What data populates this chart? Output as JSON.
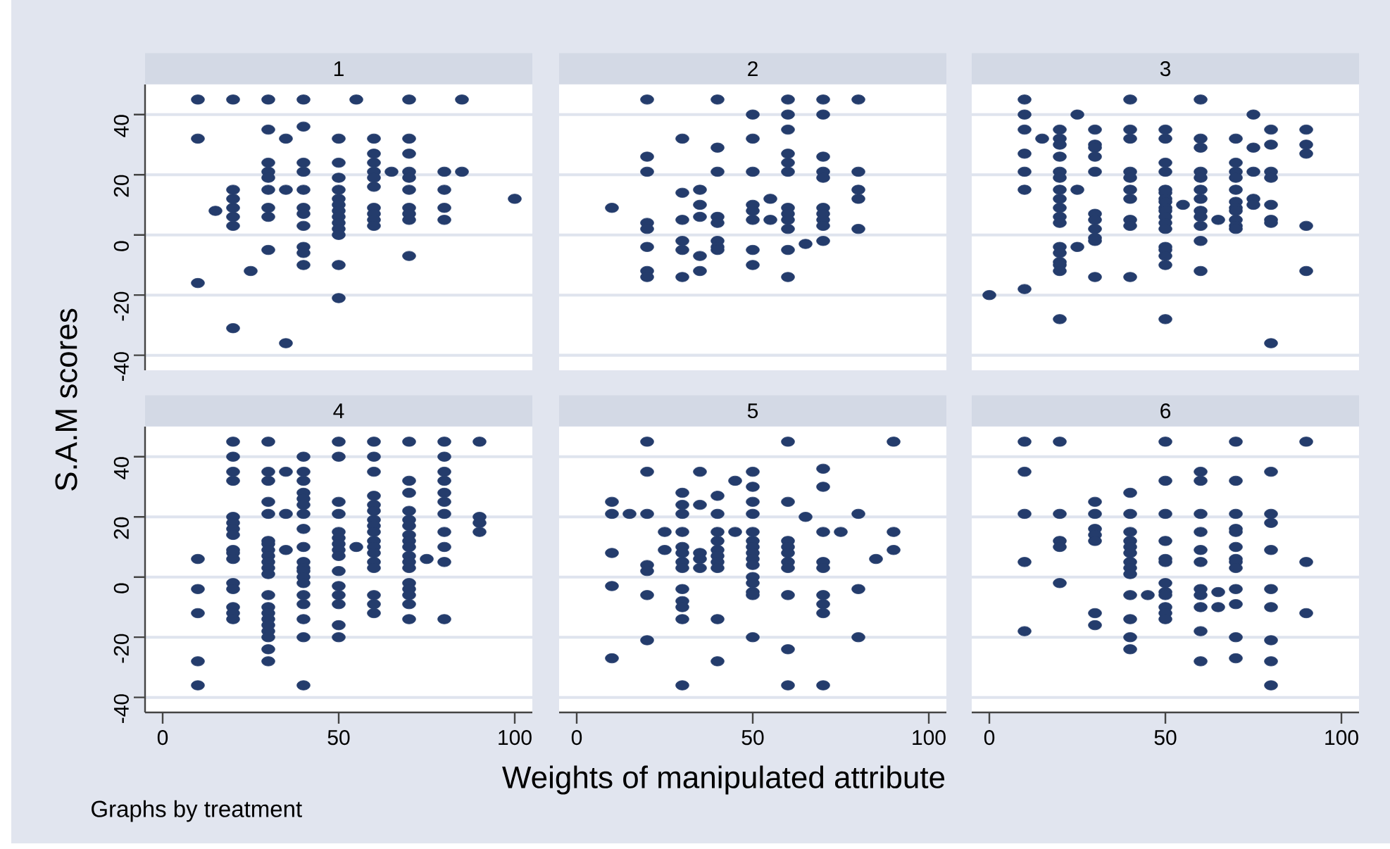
{
  "chart_data": [
    {
      "type": "scatter",
      "title": "1",
      "ylabel": "S.A.M scores",
      "color": "#243c6c",
      "marker": "circle",
      "grid": "y",
      "tick_labels": "y",
      "xlim": [
        -5,
        105
      ],
      "ylim": [
        -45,
        50
      ],
      "xticks": [
        0,
        50,
        100
      ],
      "yticks": [
        -40,
        -20,
        0,
        20,
        40
      ],
      "x": [
        10,
        10,
        10,
        15,
        20,
        20,
        20,
        20,
        20,
        20,
        20,
        25,
        30,
        30,
        30,
        30,
        30,
        30,
        30,
        30,
        30,
        35,
        35,
        35,
        40,
        40,
        40,
        40,
        40,
        40,
        40,
        40,
        40,
        40,
        40,
        50,
        50,
        50,
        50,
        50,
        50,
        50,
        50,
        50,
        50,
        50,
        50,
        50,
        55,
        60,
        60,
        60,
        60,
        60,
        60,
        60,
        60,
        60,
        60,
        65,
        70,
        70,
        70,
        70,
        70,
        70,
        70,
        70,
        70,
        70,
        80,
        80,
        80,
        80,
        85,
        85,
        100
      ],
      "values": [
        45,
        32,
        -16,
        8,
        45,
        15,
        12,
        9,
        6,
        3,
        -31,
        -12,
        45,
        35,
        24,
        21,
        19,
        15,
        9,
        6,
        -5,
        32,
        15,
        -36,
        45,
        36,
        24,
        21,
        15,
        9,
        7,
        3,
        -4,
        -6,
        -10,
        32,
        24,
        19,
        15,
        12,
        10,
        8,
        6,
        4,
        2,
        0,
        -10,
        -21,
        45,
        32,
        27,
        24,
        21,
        19,
        16,
        9,
        7,
        5,
        3,
        21,
        45,
        32,
        27,
        21,
        19,
        15,
        9,
        7,
        5,
        -7,
        21,
        15,
        9,
        5,
        45,
        21,
        12
      ]
    },
    {
      "type": "scatter",
      "title": "2",
      "color": "#243c6c",
      "marker": "circle",
      "grid": "y",
      "tick_labels": false,
      "xlim": [
        -5,
        105
      ],
      "ylim": [
        -45,
        50
      ],
      "xticks": [
        0,
        50,
        100
      ],
      "yticks": [
        -40,
        -20,
        0,
        20,
        40
      ],
      "x": [
        10,
        20,
        20,
        20,
        20,
        20,
        20,
        20,
        20,
        30,
        30,
        30,
        30,
        30,
        30,
        35,
        35,
        35,
        35,
        35,
        40,
        40,
        40,
        40,
        40,
        40,
        40,
        40,
        50,
        50,
        50,
        50,
        50,
        50,
        50,
        50,
        55,
        55,
        60,
        60,
        60,
        60,
        60,
        60,
        60,
        60,
        60,
        60,
        60,
        60,
        65,
        70,
        70,
        70,
        70,
        70,
        70,
        70,
        70,
        70,
        70,
        80,
        80,
        80,
        80,
        80
      ],
      "values": [
        9,
        45,
        26,
        21,
        4,
        2,
        -4,
        -12,
        -14,
        32,
        14,
        5,
        -2,
        -5,
        -14,
        15,
        10,
        6,
        -7,
        -12,
        45,
        29,
        21,
        6,
        4,
        -2,
        -4,
        -5,
        40,
        32,
        21,
        10,
        8,
        5,
        -5,
        -10,
        12,
        5,
        45,
        40,
        35,
        27,
        24,
        21,
        9,
        7,
        5,
        2,
        -5,
        -14,
        -3,
        45,
        40,
        26,
        21,
        19,
        9,
        7,
        5,
        3,
        -2,
        45,
        21,
        15,
        12,
        2
      ]
    },
    {
      "type": "scatter",
      "title": "3",
      "color": "#243c6c",
      "marker": "circle",
      "grid": "y",
      "tick_labels": false,
      "xlim": [
        -5,
        105
      ],
      "ylim": [
        -45,
        50
      ],
      "xticks": [
        0,
        50,
        100
      ],
      "yticks": [
        -40,
        -20,
        0,
        20,
        40
      ],
      "x": [
        0,
        10,
        10,
        10,
        10,
        10,
        10,
        10,
        15,
        20,
        20,
        20,
        20,
        20,
        20,
        20,
        20,
        20,
        20,
        20,
        20,
        20,
        20,
        20,
        20,
        20,
        25,
        25,
        25,
        30,
        30,
        30,
        30,
        30,
        30,
        30,
        30,
        30,
        30,
        30,
        40,
        40,
        40,
        40,
        40,
        40,
        40,
        40,
        40,
        40,
        50,
        50,
        50,
        50,
        50,
        50,
        50,
        50,
        50,
        50,
        50,
        50,
        50,
        50,
        50,
        50,
        50,
        50,
        55,
        60,
        60,
        60,
        60,
        60,
        60,
        60,
        60,
        60,
        60,
        60,
        60,
        65,
        70,
        70,
        70,
        70,
        70,
        70,
        70,
        70,
        70,
        70,
        70,
        75,
        75,
        75,
        75,
        75,
        80,
        80,
        80,
        80,
        80,
        80,
        80,
        80,
        90,
        90,
        90,
        90,
        90
      ],
      "values": [
        -20,
        45,
        40,
        35,
        27,
        21,
        15,
        -18,
        32,
        35,
        32,
        30,
        26,
        21,
        19,
        15,
        12,
        9,
        6,
        4,
        -4,
        -6,
        -9,
        -10,
        -12,
        -28,
        40,
        15,
        -4,
        35,
        30,
        29,
        26,
        21,
        7,
        5,
        2,
        -1,
        -2,
        -14,
        45,
        35,
        32,
        21,
        19,
        15,
        12,
        5,
        3,
        -14,
        35,
        32,
        24,
        21,
        15,
        14,
        12,
        11,
        9,
        8,
        6,
        4,
        2,
        -4,
        -5,
        -7,
        -10,
        -28,
        10,
        45,
        32,
        29,
        21,
        19,
        15,
        12,
        8,
        6,
        3,
        -2,
        -12,
        5,
        32,
        24,
        21,
        19,
        15,
        11,
        9,
        8,
        5,
        3,
        2,
        40,
        29,
        21,
        12,
        10,
        35,
        30,
        21,
        19,
        10,
        5,
        4,
        -36,
        35,
        30,
        27,
        3,
        -12
      ]
    },
    {
      "type": "scatter",
      "title": "4",
      "annotations": [
        "Graphs by treatment"
      ],
      "color": "#243c6c",
      "marker": "circle",
      "grid": "y",
      "xlim": [
        -5,
        105
      ],
      "ylim": [
        -45,
        50
      ],
      "xticks": [
        0,
        50,
        100
      ],
      "yticks": [
        -40,
        -20,
        0,
        20,
        40
      ],
      "x": [
        10,
        10,
        10,
        10,
        10,
        20,
        20,
        20,
        20,
        20,
        20,
        20,
        20,
        20,
        20,
        20,
        20,
        20,
        20,
        20,
        20,
        30,
        30,
        30,
        30,
        30,
        30,
        30,
        30,
        30,
        30,
        30,
        30,
        30,
        30,
        30,
        30,
        30,
        30,
        30,
        30,
        30,
        35,
        35,
        35,
        40,
        40,
        40,
        40,
        40,
        40,
        40,
        40,
        40,
        40,
        40,
        40,
        40,
        40,
        40,
        40,
        40,
        40,
        40,
        50,
        50,
        50,
        50,
        50,
        50,
        50,
        50,
        50,
        50,
        50,
        50,
        50,
        50,
        50,
        55,
        60,
        60,
        60,
        60,
        60,
        60,
        60,
        60,
        60,
        60,
        60,
        60,
        60,
        60,
        60,
        60,
        60,
        70,
        70,
        70,
        70,
        70,
        70,
        70,
        70,
        70,
        70,
        70,
        70,
        70,
        70,
        70,
        70,
        70,
        75,
        80,
        80,
        80,
        80,
        80,
        80,
        80,
        80,
        80,
        80,
        80,
        90,
        90,
        90,
        90
      ],
      "values": [
        6,
        -4,
        -12,
        -28,
        -36,
        45,
        40,
        35,
        32,
        20,
        18,
        16,
        14,
        9,
        8,
        6,
        -2,
        -4,
        -10,
        -12,
        -14,
        45,
        35,
        32,
        25,
        21,
        12,
        11,
        9,
        7,
        5,
        3,
        1,
        -6,
        -10,
        -12,
        -14,
        -16,
        -18,
        -20,
        -24,
        -28,
        35,
        21,
        9,
        40,
        35,
        32,
        28,
        26,
        24,
        21,
        16,
        10,
        5,
        3,
        2,
        0,
        -2,
        -6,
        -9,
        -14,
        -20,
        -36,
        45,
        40,
        25,
        21,
        15,
        13,
        11,
        9,
        7,
        2,
        -3,
        -6,
        -9,
        -16,
        -20,
        10,
        45,
        40,
        35,
        27,
        24,
        22,
        19,
        17,
        15,
        12,
        10,
        8,
        5,
        3,
        -6,
        -9,
        -12,
        45,
        32,
        28,
        22,
        19,
        17,
        14,
        12,
        10,
        7,
        5,
        3,
        -2,
        -4,
        -6,
        -9,
        -14,
        6,
        45,
        40,
        35,
        32,
        28,
        25,
        21,
        15,
        10,
        5,
        -14,
        45,
        20,
        18,
        15
      ]
    },
    {
      "type": "scatter",
      "title": "5",
      "xlabel": "Weights of manipulated attribute",
      "color": "#243c6c",
      "marker": "circle",
      "grid": "y",
      "tick_labels": "x",
      "xlim": [
        -5,
        105
      ],
      "ylim": [
        -45,
        50
      ],
      "xticks": [
        0,
        50,
        100
      ],
      "yticks": [
        -40,
        -20,
        0,
        20,
        40
      ],
      "x": [
        10,
        10,
        10,
        10,
        10,
        15,
        20,
        20,
        20,
        20,
        20,
        20,
        20,
        25,
        25,
        30,
        30,
        30,
        30,
        30,
        30,
        30,
        30,
        30,
        30,
        30,
        30,
        30,
        35,
        35,
        35,
        35,
        35,
        40,
        40,
        40,
        40,
        40,
        40,
        40,
        40,
        40,
        40,
        45,
        45,
        50,
        50,
        50,
        50,
        50,
        50,
        50,
        50,
        50,
        50,
        50,
        50,
        50,
        50,
        50,
        60,
        60,
        60,
        60,
        60,
        60,
        60,
        60,
        60,
        60,
        65,
        70,
        70,
        70,
        70,
        70,
        70,
        70,
        70,
        70,
        75,
        80,
        80,
        80,
        85,
        90,
        90,
        90
      ],
      "values": [
        25,
        21,
        8,
        -3,
        -27,
        21,
        45,
        35,
        21,
        4,
        2,
        -6,
        -21,
        15,
        9,
        28,
        24,
        21,
        15,
        10,
        8,
        5,
        3,
        -4,
        -8,
        -10,
        -14,
        -36,
        35,
        24,
        8,
        6,
        3,
        27,
        21,
        15,
        12,
        9,
        7,
        5,
        3,
        -14,
        -28,
        32,
        15,
        35,
        30,
        25,
        21,
        15,
        12,
        10,
        8,
        6,
        4,
        0,
        -2,
        -5,
        -6,
        -20,
        45,
        25,
        12,
        10,
        8,
        5,
        3,
        -6,
        -24,
        -36,
        20,
        36,
        30,
        15,
        5,
        3,
        -6,
        -9,
        -12,
        -36,
        15,
        21,
        -4,
        -20,
        6,
        45,
        15,
        9
      ]
    },
    {
      "type": "scatter",
      "title": "6",
      "color": "#243c6c",
      "marker": "circle",
      "grid": "y",
      "tick_labels": "x",
      "xlim": [
        -5,
        105
      ],
      "ylim": [
        -45,
        50
      ],
      "xticks": [
        0,
        50,
        100
      ],
      "yticks": [
        -40,
        -20,
        0,
        20,
        40
      ],
      "x": [
        10,
        10,
        10,
        10,
        10,
        20,
        20,
        20,
        20,
        20,
        30,
        30,
        30,
        30,
        30,
        30,
        30,
        40,
        40,
        40,
        40,
        40,
        40,
        40,
        40,
        40,
        40,
        40,
        40,
        40,
        45,
        50,
        50,
        50,
        50,
        50,
        50,
        50,
        50,
        50,
        50,
        50,
        50,
        60,
        60,
        60,
        60,
        60,
        60,
        60,
        60,
        60,
        60,
        60,
        65,
        65,
        70,
        70,
        70,
        70,
        70,
        70,
        70,
        70,
        70,
        70,
        70,
        70,
        70,
        80,
        80,
        80,
        80,
        80,
        80,
        80,
        80,
        80,
        90,
        90,
        90
      ],
      "values": [
        45,
        35,
        21,
        5,
        -18,
        45,
        21,
        12,
        10,
        -2,
        25,
        21,
        16,
        14,
        12,
        -12,
        -16,
        28,
        21,
        15,
        12,
        10,
        8,
        5,
        3,
        1,
        -6,
        -14,
        -20,
        -24,
        -6,
        45,
        32,
        21,
        12,
        6,
        5,
        -2,
        -5,
        -6,
        -10,
        -12,
        -14,
        35,
        32,
        21,
        15,
        9,
        5,
        -4,
        -6,
        -10,
        -18,
        -28,
        -5,
        -10,
        45,
        32,
        21,
        16,
        15,
        10,
        6,
        5,
        3,
        -4,
        -9,
        -20,
        -27,
        35,
        21,
        18,
        9,
        -4,
        -10,
        -21,
        -28,
        -36,
        45,
        5,
        -12
      ]
    }
  ]
}
